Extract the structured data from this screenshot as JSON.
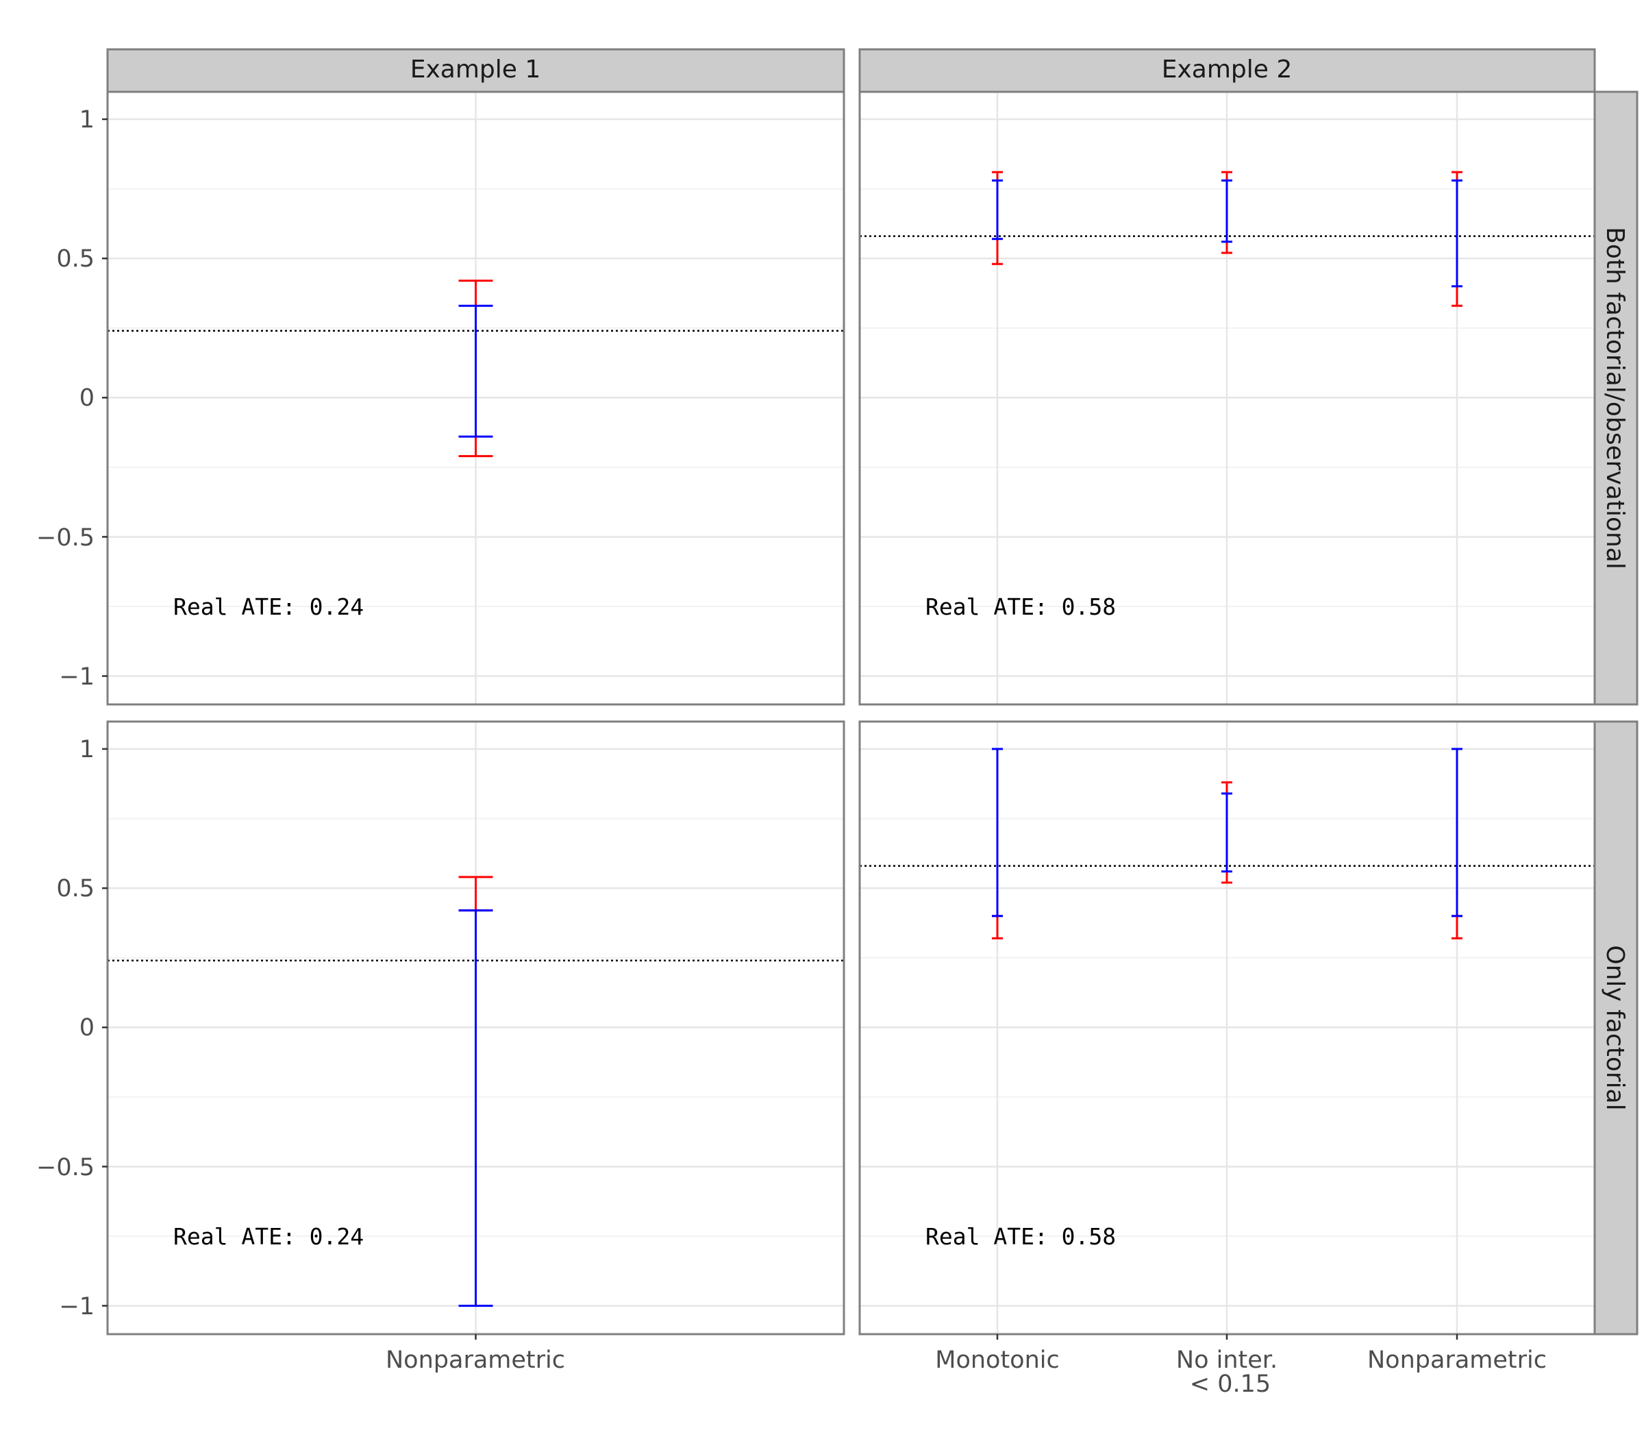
{
  "chart_data": {
    "type": "errorbar",
    "ylim": [
      -1.1,
      1.1
    ],
    "y_ticks": [
      -1,
      -0.5,
      0,
      0.5,
      1
    ],
    "y_tick_labels": [
      "−1",
      "−0.5",
      "0",
      "0.5",
      "1"
    ],
    "col_strips": [
      "Example 1",
      "Example 2"
    ],
    "row_strips": [
      "Both factorial/observational",
      "Only factorial"
    ],
    "categories": {
      "example1": [
        "Nonparametric"
      ],
      "example2": [
        "Monotonic",
        "No inter.\n< 0.15",
        "Nonparametric"
      ]
    },
    "example2_tick_lines": [
      "No inter.",
      "< 0.15"
    ],
    "series_colors": {
      "outer": "#ff0000",
      "inner": "#0000ff",
      "reference": "#000000"
    },
    "panels": [
      {
        "row": "Both factorial/observational",
        "col": "Example 1",
        "real_ate": 0.24,
        "annotation": "Real ATE: 0.24",
        "intervals": [
          {
            "category": "Nonparametric",
            "outer": [
              -0.21,
              0.42
            ],
            "inner": [
              -0.14,
              0.33
            ]
          }
        ]
      },
      {
        "row": "Both factorial/observational",
        "col": "Example 2",
        "real_ate": 0.58,
        "annotation": "Real ATE: 0.58",
        "intervals": [
          {
            "category": "Monotonic",
            "outer": [
              0.48,
              0.81
            ],
            "inner": [
              0.57,
              0.78
            ]
          },
          {
            "category": "No inter. < 0.15",
            "outer": [
              0.52,
              0.81
            ],
            "inner": [
              0.56,
              0.78
            ]
          },
          {
            "category": "Nonparametric",
            "outer": [
              0.33,
              0.81
            ],
            "inner": [
              0.4,
              0.78
            ]
          }
        ]
      },
      {
        "row": "Only factorial",
        "col": "Example 1",
        "real_ate": 0.24,
        "annotation": "Real ATE: 0.24",
        "intervals": [
          {
            "category": "Nonparametric",
            "outer": [
              0.42,
              0.54
            ],
            "inner": [
              -1.0,
              0.42
            ]
          }
        ]
      },
      {
        "row": "Only factorial",
        "col": "Example 2",
        "real_ate": 0.58,
        "annotation": "Real ATE: 0.58",
        "intervals": [
          {
            "category": "Monotonic",
            "outer": [
              0.32,
              0.4
            ],
            "inner": [
              0.4,
              1.0
            ]
          },
          {
            "category": "No inter. < 0.15",
            "outer": [
              0.52,
              0.88
            ],
            "inner": [
              0.56,
              0.84
            ]
          },
          {
            "category": "Nonparametric",
            "outer": [
              0.32,
              0.4
            ],
            "inner": [
              0.4,
              1.0
            ]
          }
        ]
      }
    ]
  }
}
